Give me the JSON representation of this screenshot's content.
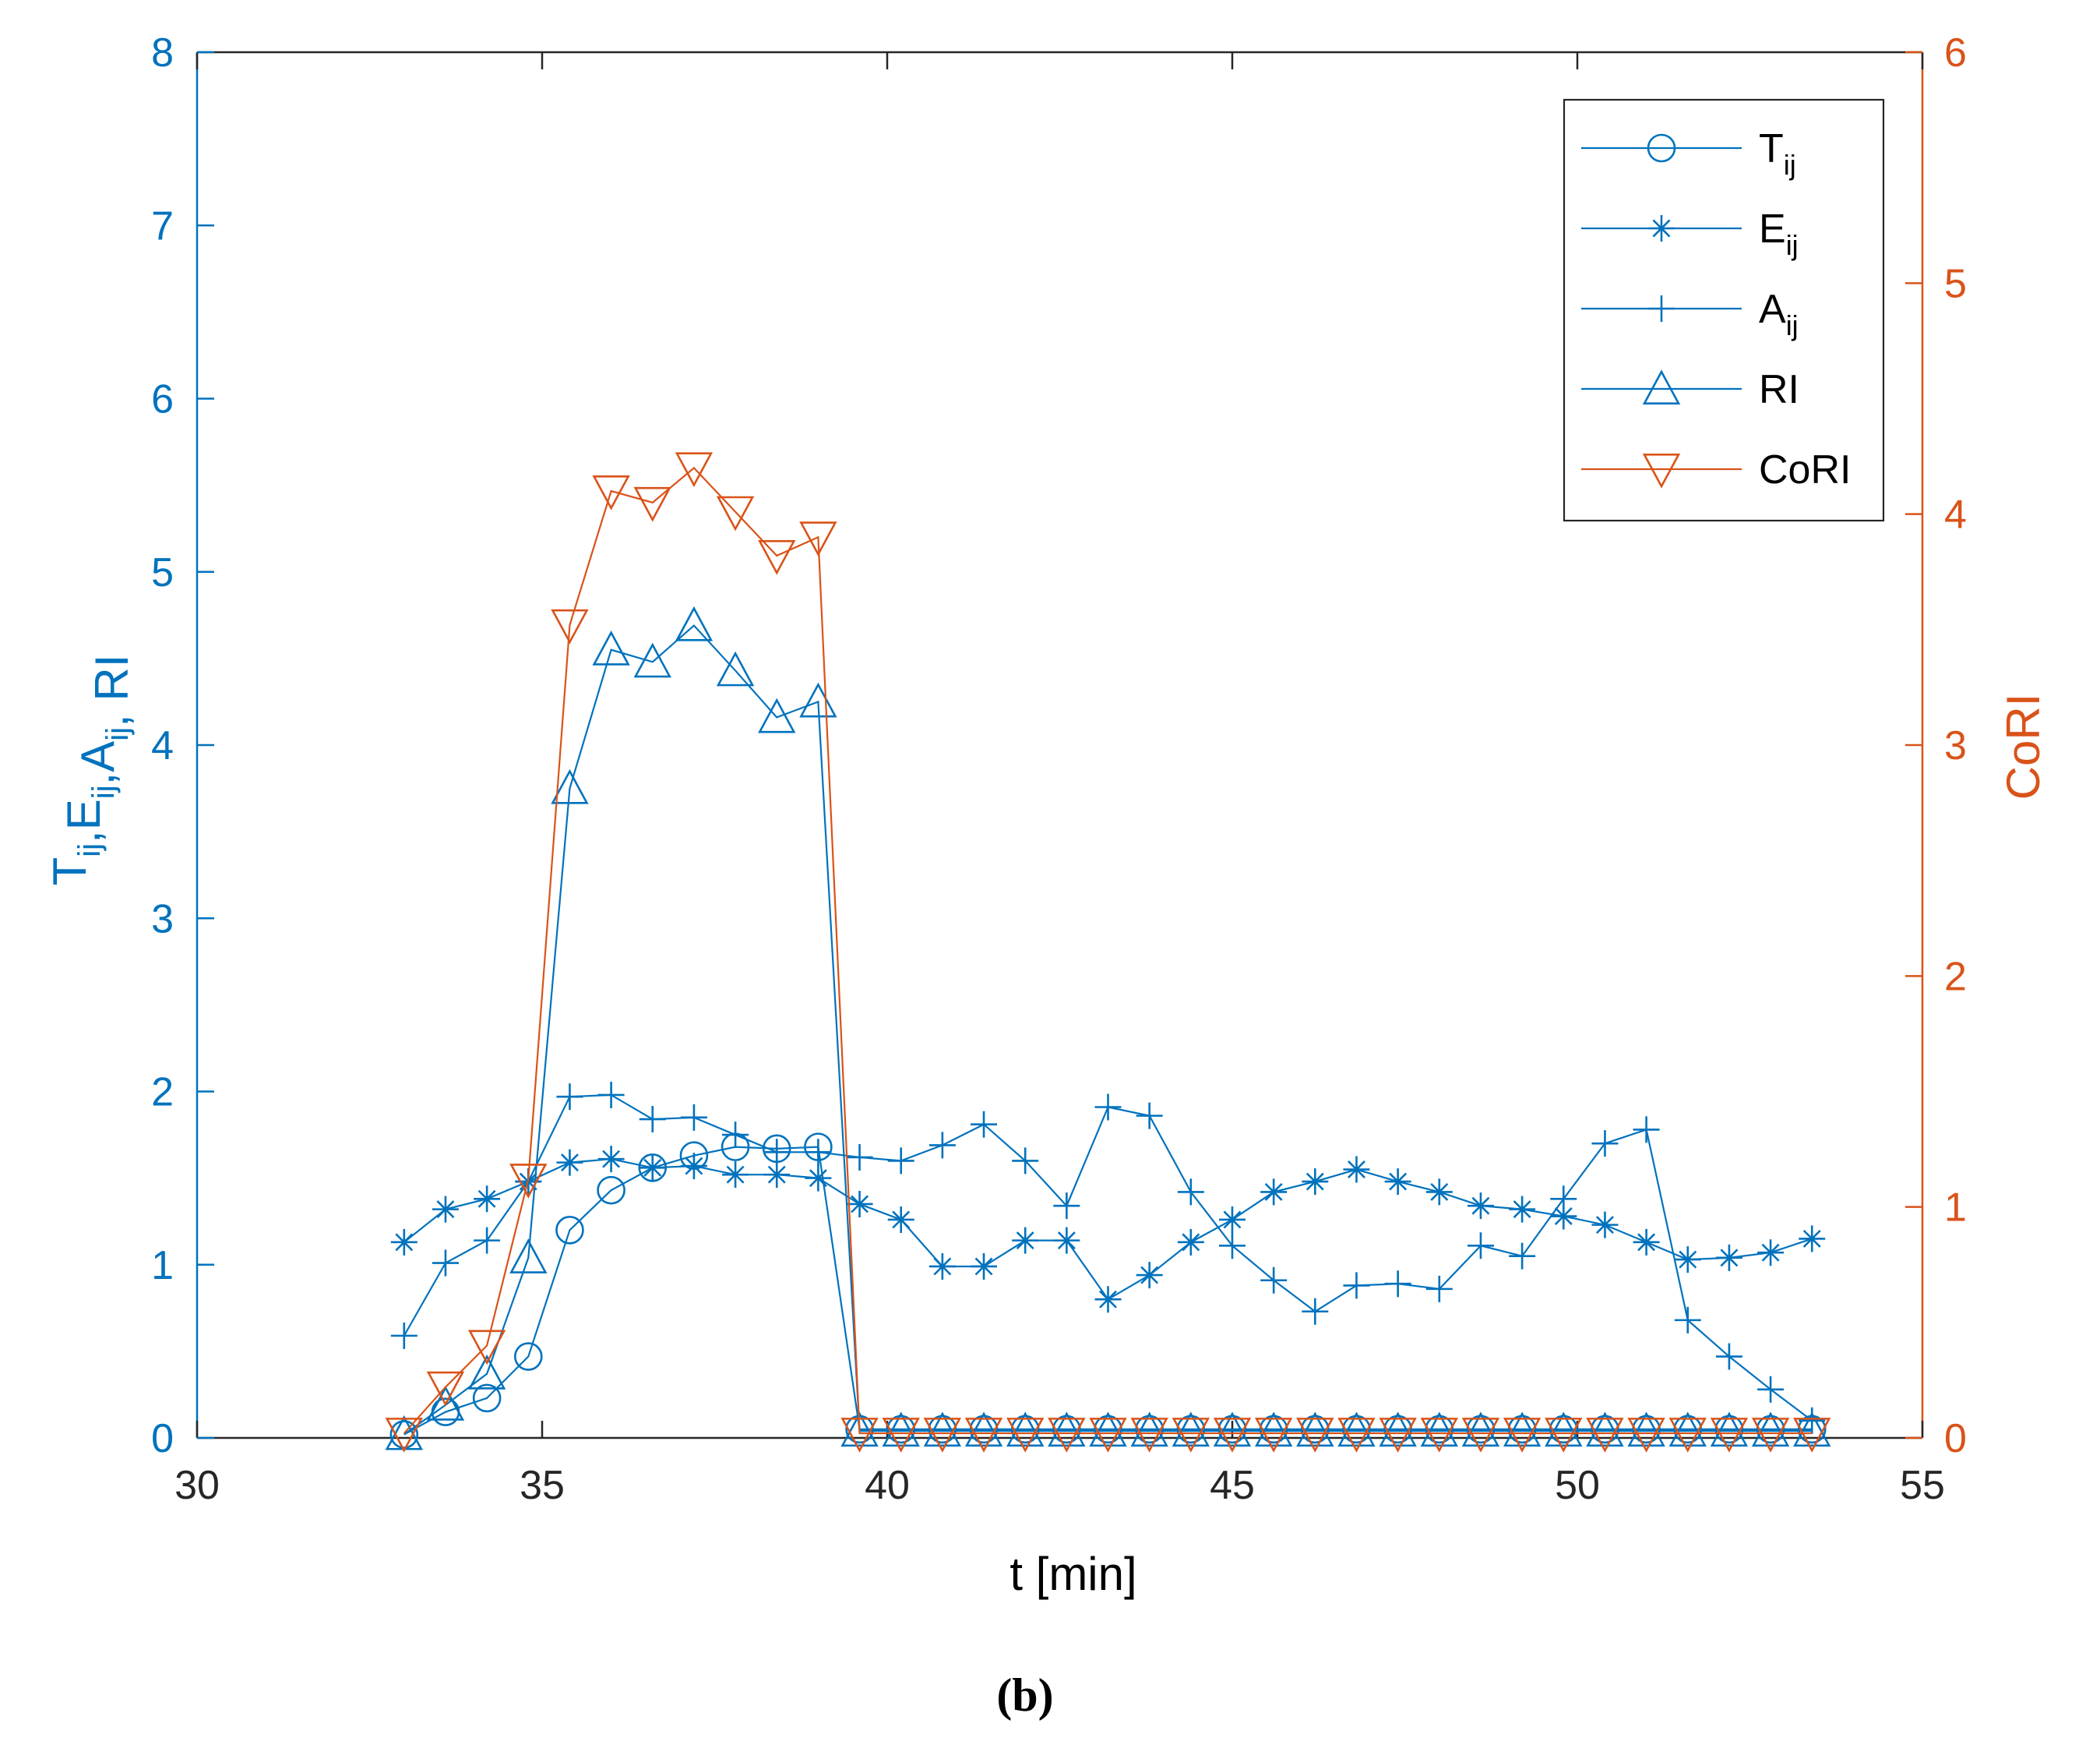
{
  "chart_data": {
    "type": "line",
    "caption": "(b)",
    "xlabel": "t [min]",
    "xlim": [
      30,
      55
    ],
    "xticks": [
      "30",
      "35",
      "40",
      "45",
      "50",
      "55"
    ],
    "ylabel_left": {
      "parts": [
        {
          "t": "T",
          "sub": "ij"
        },
        {
          "t": ",E",
          "sub": "ij"
        },
        {
          "t": ",A",
          "sub": "ij"
        },
        {
          "t": ", RI",
          "sub": ""
        }
      ]
    },
    "ylim_left": [
      0,
      8
    ],
    "yticks_left": [
      "0",
      "1",
      "2",
      "3",
      "4",
      "5",
      "6",
      "7",
      "8"
    ],
    "ylabel_right": "CoRI",
    "ylim_right": [
      0,
      6
    ],
    "yticks_right": [
      "0",
      "1",
      "2",
      "3",
      "4",
      "5",
      "6"
    ],
    "colors": {
      "blue": "#0072BD",
      "orange": "#D95319"
    },
    "x": [
      33.0,
      33.6,
      34.2,
      34.8,
      35.4,
      36.0,
      36.6,
      37.2,
      37.8,
      38.4,
      39.0,
      39.6,
      40.2,
      40.8,
      41.4,
      42.0,
      42.6,
      43.2,
      43.8,
      44.4,
      45.0,
      45.6,
      46.2,
      46.8,
      47.4,
      48.0,
      48.6,
      49.2,
      49.8,
      50.4,
      51.0,
      51.6,
      52.2,
      52.8,
      53.4
    ],
    "series": [
      {
        "name": "T",
        "sub": "ij",
        "axis": "left",
        "marker": "circle",
        "color": "#0072BD",
        "values": [
          0.02,
          0.15,
          0.23,
          0.47,
          1.2,
          1.43,
          1.56,
          1.63,
          1.68,
          1.67,
          1.68,
          0.05,
          0.05,
          0.05,
          0.05,
          0.05,
          0.05,
          0.05,
          0.05,
          0.05,
          0.05,
          0.05,
          0.05,
          0.05,
          0.05,
          0.05,
          0.05,
          0.05,
          0.05,
          0.05,
          0.05,
          0.05,
          0.05,
          0.05,
          0.05
        ]
      },
      {
        "name": "E",
        "sub": "ij",
        "axis": "left",
        "marker": "asterisk",
        "color": "#0072BD",
        "values": [
          1.13,
          1.32,
          1.38,
          1.48,
          1.59,
          1.61,
          1.56,
          1.57,
          1.52,
          1.52,
          1.5,
          1.35,
          1.26,
          0.99,
          0.99,
          1.14,
          1.14,
          0.8,
          0.94,
          1.13,
          1.26,
          1.42,
          1.48,
          1.55,
          1.48,
          1.42,
          1.34,
          1.32,
          1.28,
          1.23,
          1.13,
          1.03,
          1.04,
          1.07,
          1.15
        ]
      },
      {
        "name": "A",
        "sub": "ij",
        "axis": "left",
        "marker": "plus",
        "color": "#0072BD",
        "values": [
          0.59,
          1.01,
          1.14,
          1.48,
          1.97,
          1.98,
          1.84,
          1.85,
          1.75,
          1.65,
          1.65,
          1.62,
          1.6,
          1.69,
          1.81,
          1.6,
          1.34,
          1.91,
          1.86,
          1.42,
          1.11,
          0.91,
          0.73,
          0.88,
          0.89,
          0.86,
          1.11,
          1.05,
          1.38,
          1.7,
          1.78,
          0.68,
          0.47,
          0.28,
          0.1
        ]
      },
      {
        "name": "RI",
        "sub": "",
        "axis": "left",
        "marker": "triangle-up",
        "color": "#0072BD",
        "values": [
          0.02,
          0.19,
          0.37,
          1.04,
          3.75,
          4.55,
          4.48,
          4.69,
          4.43,
          4.16,
          4.25,
          0.04,
          0.04,
          0.04,
          0.04,
          0.04,
          0.04,
          0.04,
          0.04,
          0.04,
          0.04,
          0.04,
          0.04,
          0.04,
          0.04,
          0.04,
          0.04,
          0.04,
          0.04,
          0.04,
          0.04,
          0.04,
          0.04,
          0.04,
          0.04
        ]
      },
      {
        "name": "CoRI",
        "sub": "",
        "axis": "right",
        "marker": "triangle-down",
        "color": "#D95319",
        "values": [
          0.02,
          0.22,
          0.4,
          1.12,
          3.52,
          4.1,
          4.05,
          4.2,
          4.01,
          3.82,
          3.9,
          0.02,
          0.02,
          0.02,
          0.02,
          0.02,
          0.02,
          0.02,
          0.02,
          0.02,
          0.02,
          0.02,
          0.02,
          0.02,
          0.02,
          0.02,
          0.02,
          0.02,
          0.02,
          0.02,
          0.02,
          0.02,
          0.02,
          0.02,
          0.02
        ]
      }
    ],
    "legend_position": "top-right"
  }
}
